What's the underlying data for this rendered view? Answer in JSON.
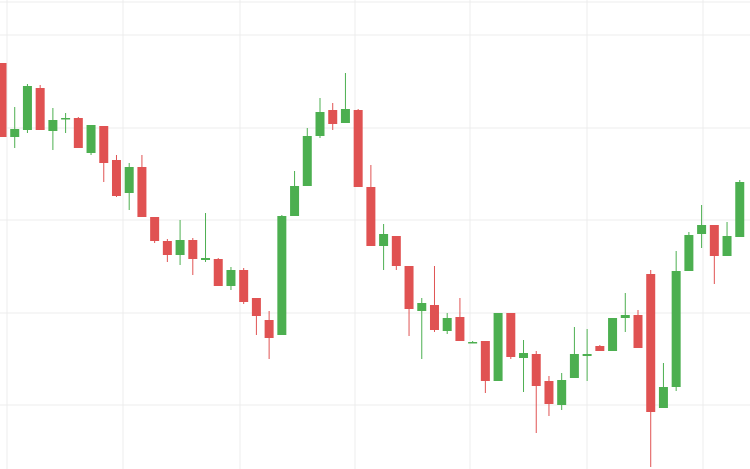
{
  "chart_data": {
    "type": "candlestick",
    "up_color": "#4caf50",
    "down_color": "#e05252",
    "ylim": [
      0,
      469
    ],
    "yticks": [
      64,
      156,
      249,
      341,
      434
    ],
    "grid": true,
    "open": [
      406,
      332,
      339,
      381,
      338,
      351,
      351,
      316,
      343,
      309,
      276,
      302,
      252,
      228,
      214,
      229,
      209,
      210,
      183,
      199,
      171,
      149,
      134,
      253,
      283,
      333,
      359,
      346,
      359,
      282,
      223,
      233,
      203,
      158,
      164,
      138,
      152,
      127,
      128,
      88,
      156,
      111,
      115,
      88,
      64,
      91,
      113,
      123,
      118,
      151,
      154,
      195,
      61,
      82,
      198,
      235,
      244,
      213,
      232
    ],
    "close": [
      332,
      340,
      383,
      339,
      349,
      351,
      321,
      344,
      306,
      273,
      302,
      252,
      228,
      214,
      229,
      210,
      211,
      183,
      199,
      167,
      153,
      131,
      253,
      283,
      333,
      357,
      345,
      360,
      282,
      223,
      235,
      203,
      160,
      166,
      139,
      151,
      128,
      127,
      88,
      156,
      112,
      116,
      83,
      65,
      89,
      115,
      115,
      118,
      151,
      154,
      121,
      57,
      82,
      198,
      234,
      244,
      213,
      233,
      287
    ],
    "high": [
      406,
      362,
      385,
      384,
      361,
      356,
      352,
      344,
      343,
      314,
      306,
      314,
      252,
      230,
      249,
      231,
      256,
      211,
      202,
      201,
      171,
      158,
      254,
      298,
      341,
      371,
      366,
      396,
      360,
      304,
      245,
      233,
      203,
      171,
      203,
      156,
      171,
      128,
      128,
      156,
      156,
      129,
      118,
      93,
      96,
      142,
      140,
      124,
      151,
      176,
      159,
      199,
      106,
      218,
      237,
      264,
      244,
      247,
      289
    ],
    "low": [
      332,
      321,
      336,
      339,
      319,
      336,
      321,
      314,
      287,
      272,
      259,
      252,
      226,
      207,
      204,
      194,
      207,
      183,
      179,
      165,
      134,
      110,
      134,
      253,
      283,
      331,
      339,
      346,
      282,
      223,
      199,
      199,
      133,
      110,
      137,
      135,
      128,
      126,
      76,
      88,
      110,
      77,
      36,
      53,
      59,
      91,
      88,
      118,
      118,
      137,
      121,
      2,
      61,
      78,
      198,
      221,
      185,
      213,
      232
    ]
  }
}
